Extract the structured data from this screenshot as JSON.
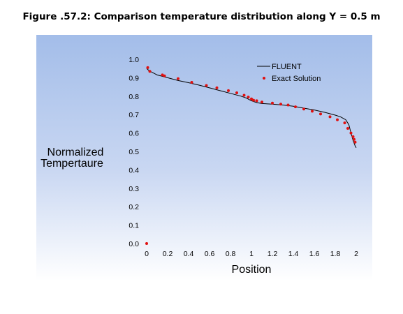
{
  "figure": {
    "caption": "Figure .57.2: Comparison temperature distribution along Y = 0.5 m"
  },
  "colors": {
    "panel_top": "#a3bde9",
    "panel_bottom": "#ffffff",
    "line": "#000000",
    "points": "#e01010"
  },
  "chart_data": {
    "type": "line",
    "title": "",
    "xlabel": "Position",
    "ylabel_lines": [
      "Normalized",
      "Tempertaure"
    ],
    "xlim": [
      0,
      2
    ],
    "ylim": [
      0,
      1
    ],
    "xticks": [
      "0",
      "0.2",
      "0.4",
      "0.6",
      "0.8",
      "1",
      "1.2",
      "1.4",
      "1.6",
      "1.8",
      "2"
    ],
    "yticks": [
      "0.0",
      "0.1",
      "0.2",
      "0.3",
      "0.4",
      "0.5",
      "0.6",
      "0.7",
      "0.8",
      "0.9",
      "1.0"
    ],
    "grid": false,
    "legend_position": "top-right",
    "series": [
      {
        "name": "FLUENT",
        "style": "line",
        "x": [
          0,
          0.02,
          0.05,
          0.1,
          0.2,
          0.3,
          0.4,
          0.5,
          0.6,
          0.7,
          0.8,
          0.9,
          0.95,
          1.0,
          1.05,
          1.1,
          1.2,
          1.3,
          1.4,
          1.5,
          1.6,
          1.7,
          1.8,
          1.85,
          1.9,
          1.93,
          1.95,
          1.97,
          1.99,
          2.0
        ],
        "y": [
          0.95,
          0.94,
          0.93,
          0.915,
          0.9,
          0.885,
          0.873,
          0.86,
          0.845,
          0.83,
          0.815,
          0.8,
          0.79,
          0.775,
          0.765,
          0.76,
          0.757,
          0.752,
          0.745,
          0.735,
          0.725,
          0.712,
          0.697,
          0.688,
          0.672,
          0.645,
          0.6,
          0.56,
          0.53,
          0.52
        ]
      },
      {
        "name": "Exact Solution",
        "style": "points",
        "x": [
          0.0,
          0.01,
          0.03,
          0.15,
          0.17,
          0.3,
          0.43,
          0.57,
          0.67,
          0.78,
          0.86,
          0.93,
          0.97,
          1.0,
          1.02,
          1.05,
          1.1,
          1.2,
          1.28,
          1.35,
          1.42,
          1.5,
          1.58,
          1.66,
          1.75,
          1.82,
          1.89,
          1.92,
          1.95,
          1.97,
          1.98,
          1.99
        ],
        "y": [
          0.0,
          0.955,
          0.935,
          0.915,
          0.91,
          0.895,
          0.875,
          0.858,
          0.845,
          0.83,
          0.818,
          0.805,
          0.795,
          0.785,
          0.778,
          0.775,
          0.768,
          0.762,
          0.757,
          0.752,
          0.742,
          0.73,
          0.718,
          0.703,
          0.688,
          0.672,
          0.655,
          0.625,
          0.6,
          0.58,
          0.565,
          0.55
        ]
      }
    ]
  }
}
